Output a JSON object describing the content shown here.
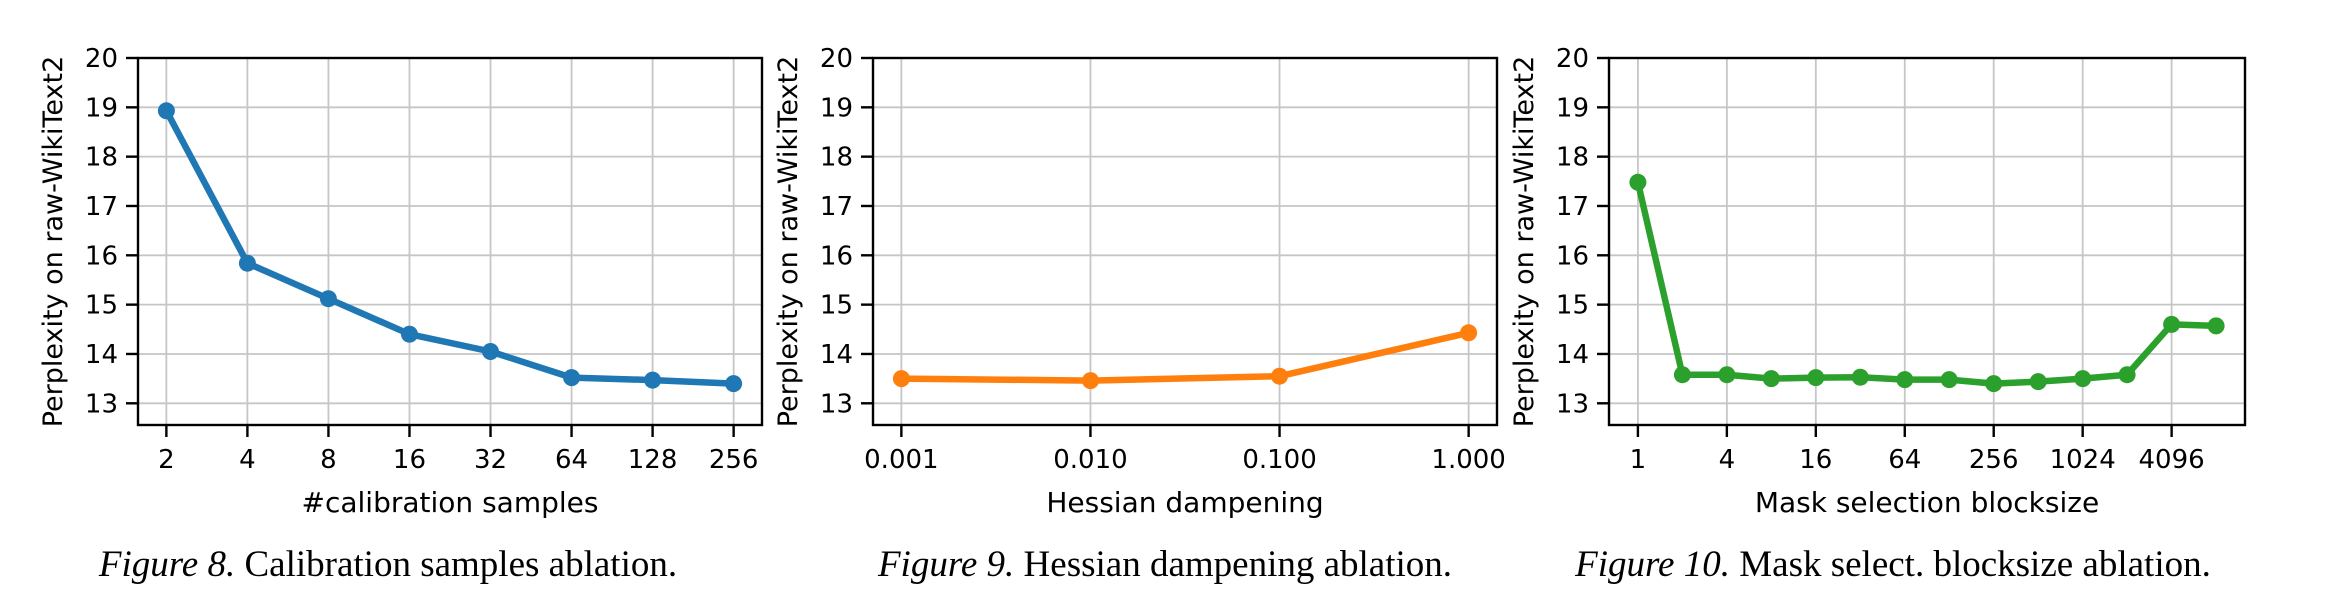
{
  "page": {
    "background_color": "#ffffff",
    "grid_color": "#c6c6c6",
    "axis_color": "#000000",
    "tick_font_px": 26,
    "axis_label_font_px": 28
  },
  "chart_data": [
    {
      "type": "line",
      "caption_label": "Figure 8.",
      "caption_text": "Calibration samples ablation.",
      "xlabel": "#calibration samples",
      "ylabel": "Perplexity on raw-WikiText2",
      "xscale": "log",
      "log_base": 2,
      "x": [
        2,
        4,
        8,
        16,
        32,
        64,
        128,
        256
      ],
      "y": [
        18.93,
        15.84,
        15.12,
        14.4,
        14.05,
        13.52,
        13.47,
        13.4
      ],
      "xticks": [
        2,
        4,
        8,
        16,
        32,
        64,
        128,
        256
      ],
      "xtick_labels": [
        "2",
        "4",
        "8",
        "16",
        "32",
        "64",
        "128",
        "256"
      ],
      "yticks": [
        13,
        14,
        15,
        16,
        17,
        18,
        19,
        20
      ],
      "ytick_labels": [
        "13",
        "14",
        "15",
        "16",
        "17",
        "18",
        "19",
        "20"
      ],
      "ylim": [
        12.56,
        20
      ],
      "grid": true,
      "legend": "none",
      "line_color": "#1f77b4"
    },
    {
      "type": "line",
      "caption_label": "Figure 9.",
      "caption_text": "Hessian dampening ablation.",
      "xlabel": "Hessian dampening",
      "ylabel": "Perplexity on raw-WikiText2",
      "xscale": "log",
      "log_base": 10,
      "x": [
        0.001,
        0.01,
        0.1,
        1.0
      ],
      "y": [
        13.5,
        13.46,
        13.55,
        14.43
      ],
      "xticks": [
        0.001,
        0.01,
        0.1,
        1.0
      ],
      "xtick_labels": [
        "0.001",
        "0.010",
        "0.100",
        "1.000"
      ],
      "yticks": [
        13,
        14,
        15,
        16,
        17,
        18,
        19,
        20
      ],
      "ytick_labels": [
        "13",
        "14",
        "15",
        "16",
        "17",
        "18",
        "19",
        "20"
      ],
      "ylim": [
        12.56,
        20
      ],
      "grid": true,
      "legend": "none",
      "line_color": "#ff7f0e"
    },
    {
      "type": "line",
      "caption_label": "Figure 10.",
      "caption_text": "Mask select. blocksize ablation.",
      "xlabel": "Mask selection blocksize",
      "ylabel": "Perplexity on raw-WikiText2",
      "xscale": "log",
      "log_base": 2,
      "x": [
        1,
        2,
        4,
        8,
        16,
        32,
        64,
        128,
        256,
        512,
        1024,
        2048,
        4096,
        8192
      ],
      "y": [
        17.48,
        13.58,
        13.58,
        13.5,
        13.52,
        13.53,
        13.48,
        13.48,
        13.4,
        13.44,
        13.5,
        13.58,
        14.6,
        14.57
      ],
      "xticks": [
        1,
        4,
        16,
        64,
        256,
        1024,
        4096
      ],
      "xtick_labels": [
        "1",
        "4",
        "16",
        "64",
        "256",
        "1024",
        "4096"
      ],
      "yticks": [
        13,
        14,
        15,
        16,
        17,
        18,
        19,
        20
      ],
      "ytick_labels": [
        "13",
        "14",
        "15",
        "16",
        "17",
        "18",
        "19",
        "20"
      ],
      "ylim": [
        12.56,
        20
      ],
      "grid": true,
      "legend": "none",
      "line_color": "#2ca02c"
    }
  ]
}
